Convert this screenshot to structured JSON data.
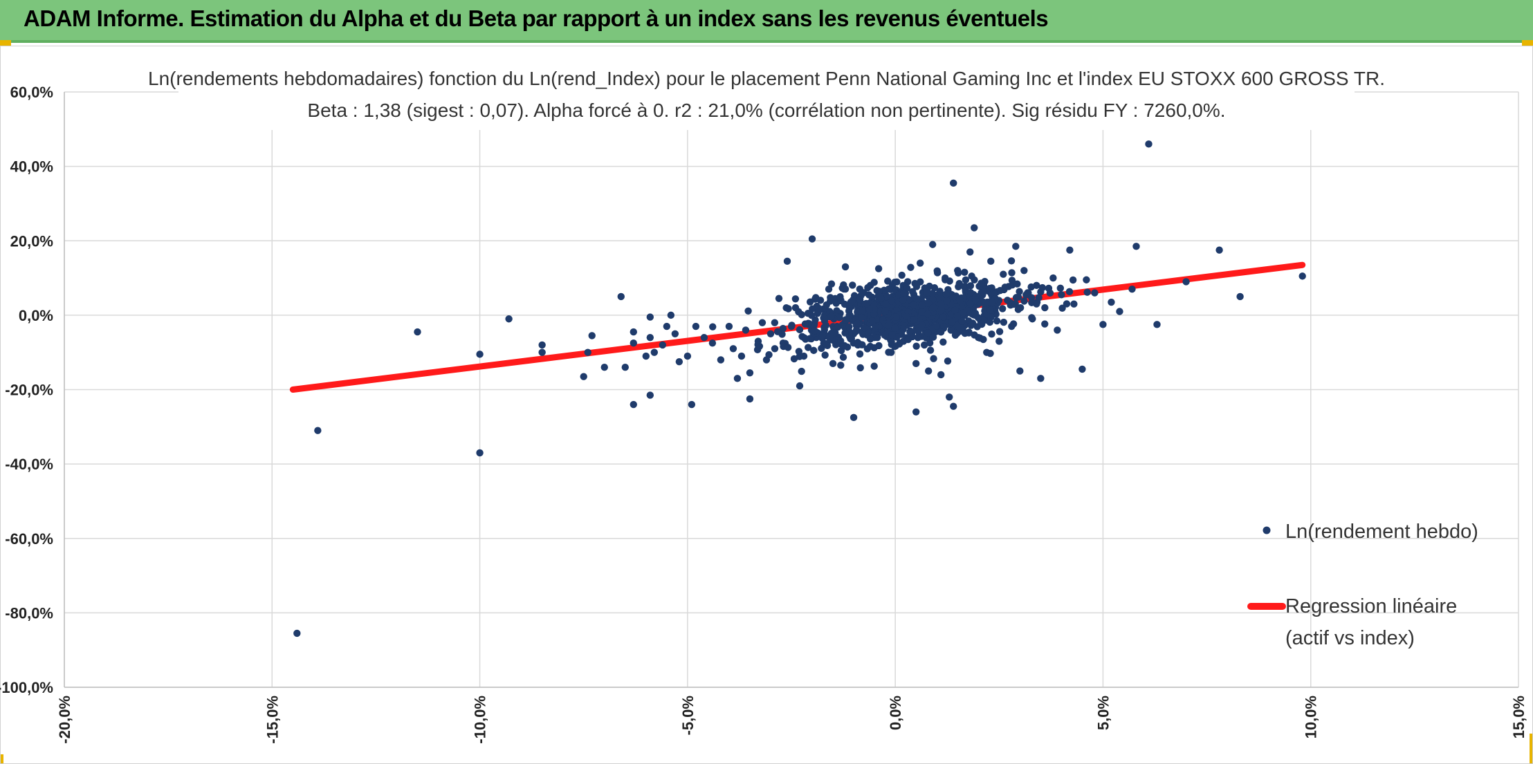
{
  "header": {
    "title": "ADAM Informe. Estimation du Alpha et du Beta par rapport à un index sans les revenus éventuels"
  },
  "colors": {
    "banner": "#7cc57c",
    "points": "#1f3b6b",
    "regression": "#ff1a1a",
    "grid": "#d9d9d9"
  },
  "chart_data": {
    "type": "scatter",
    "title_line1": "Ln(rendements hebdomadaires) fonction du Ln(rend_Index) pour le placement Penn National Gaming Inc et l'index EU STOXX 600 GROSS TR.",
    "title_line2": "Beta : 1,38 (sigest : 0,07). Alpha forcé à 0. r2 : 21,0% (corrélation non pertinente). Sig résidu FY : 7260,0%.",
    "xlim": [
      -20,
      15
    ],
    "ylim": [
      -100,
      60
    ],
    "x_ticks": [
      -20,
      -15,
      -10,
      -5,
      0,
      5,
      10,
      15
    ],
    "y_ticks": [
      60,
      40,
      20,
      0,
      -20,
      -40,
      -60,
      -80,
      -100
    ],
    "x_tick_labels": [
      "-20,0%",
      "-15,0%",
      "-10,0%",
      "-5,0%",
      "0,0%",
      "5,0%",
      "10,0%",
      "15,0%"
    ],
    "y_tick_labels": [
      "60,0%",
      "40,0%",
      "20,0%",
      "0,0%",
      "-20,0%",
      "-40,0%",
      "-60,0%",
      "-80,0%",
      "-100,0%"
    ],
    "grid": true,
    "legend_position": "right",
    "beta": 1.38,
    "alpha": 0,
    "series": [
      {
        "name": "Ln(rendement hebdo)",
        "kind": "scatter",
        "points": [
          [
            -14.4,
            -85.5
          ],
          [
            -13.9,
            -31
          ],
          [
            -11.5,
            -4.5
          ],
          [
            -10,
            -37
          ],
          [
            -10,
            -10.5
          ],
          [
            -9.3,
            -1
          ],
          [
            -8.5,
            -8
          ],
          [
            -8.5,
            -10
          ],
          [
            -7.5,
            -16.5
          ],
          [
            -7.4,
            -10
          ],
          [
            -7.3,
            -5.5
          ],
          [
            -7.0,
            -14
          ],
          [
            -6.6,
            5
          ],
          [
            -6.5,
            -14
          ],
          [
            -6.3,
            -24
          ],
          [
            -6.3,
            -7.5
          ],
          [
            -6.3,
            -4.5
          ],
          [
            -6.0,
            -11
          ],
          [
            -5.9,
            -21.5
          ],
          [
            -5.9,
            -6
          ],
          [
            -5.9,
            -0.5
          ],
          [
            -5.8,
            -10
          ],
          [
            -5.6,
            -8
          ],
          [
            -5.5,
            -3
          ],
          [
            -5.4,
            0
          ],
          [
            -5.3,
            -5
          ],
          [
            -5.2,
            -12.5
          ],
          [
            -5.0,
            -11
          ],
          [
            -4.9,
            -24
          ],
          [
            -4.8,
            -3
          ],
          [
            -4.6,
            -6
          ],
          [
            -4.4,
            -7.5
          ],
          [
            -4.2,
            -12
          ],
          [
            -4.0,
            -3
          ],
          [
            -3.9,
            -9
          ],
          [
            -3.8,
            -17
          ],
          [
            -3.7,
            -11
          ],
          [
            -3.6,
            -4
          ],
          [
            -3.5,
            -22.5
          ],
          [
            -3.5,
            -15.5
          ],
          [
            -3.3,
            -7
          ],
          [
            -3.2,
            -2
          ],
          [
            -3.1,
            -12
          ],
          [
            -3.0,
            -5
          ],
          [
            -2.9,
            -9
          ],
          [
            -2.8,
            4.5
          ],
          [
            -2.7,
            -7.5
          ],
          [
            -2.6,
            14.5
          ],
          [
            -2.5,
            -3
          ],
          [
            -2.4,
            2
          ],
          [
            -2.3,
            -19
          ],
          [
            -2.2,
            -11
          ],
          [
            -2.1,
            0.5
          ],
          [
            -2.0,
            20.5
          ],
          [
            -1.9,
            -6
          ],
          [
            -1.8,
            4
          ],
          [
            -1.7,
            -1.5
          ],
          [
            -1.6,
            7
          ],
          [
            -1.5,
            -13
          ],
          [
            -1.4,
            -3
          ],
          [
            -1.3,
            -9.5
          ],
          [
            -1.2,
            13
          ],
          [
            -1.1,
            2
          ],
          [
            -1.0,
            -5
          ],
          [
            -1.0,
            -27.5
          ],
          [
            -0.9,
            -8
          ],
          [
            -0.8,
            3
          ],
          [
            -0.7,
            -2
          ],
          [
            -0.6,
            8
          ],
          [
            -0.5,
            -6
          ],
          [
            -0.4,
            12.5
          ],
          [
            -0.3,
            -4
          ],
          [
            -0.2,
            1.5
          ],
          [
            -0.1,
            -10
          ],
          [
            0.0,
            5
          ],
          [
            0.1,
            -3
          ],
          [
            0.2,
            -7
          ],
          [
            0.3,
            9
          ],
          [
            0.4,
            -0.5
          ],
          [
            0.5,
            -26
          ],
          [
            0.5,
            -13
          ],
          [
            0.6,
            14
          ],
          [
            0.7,
            -8
          ],
          [
            0.8,
            -15
          ],
          [
            0.9,
            19
          ],
          [
            1.0,
            3
          ],
          [
            1.1,
            -16
          ],
          [
            1.2,
            10
          ],
          [
            1.3,
            -22
          ],
          [
            1.4,
            35.5
          ],
          [
            1.4,
            -24.5
          ],
          [
            1.5,
            12
          ],
          [
            1.6,
            -2
          ],
          [
            1.7,
            6
          ],
          [
            1.8,
            17
          ],
          [
            1.9,
            23.5
          ],
          [
            2.0,
            -6
          ],
          [
            2.1,
            8
          ],
          [
            2.2,
            -10
          ],
          [
            2.3,
            14.5
          ],
          [
            2.4,
            1
          ],
          [
            2.5,
            -7
          ],
          [
            2.6,
            11
          ],
          [
            2.7,
            4
          ],
          [
            2.8,
            -3
          ],
          [
            2.9,
            18.5
          ],
          [
            3.0,
            -15
          ],
          [
            3.1,
            12
          ],
          [
            3.2,
            6
          ],
          [
            3.3,
            -1
          ],
          [
            3.4,
            8
          ],
          [
            3.5,
            -17
          ],
          [
            3.6,
            2
          ],
          [
            3.8,
            10
          ],
          [
            3.9,
            -4
          ],
          [
            4.0,
            5.5
          ],
          [
            4.2,
            17.5
          ],
          [
            4.3,
            3
          ],
          [
            4.5,
            -14.5
          ],
          [
            4.6,
            9.5
          ],
          [
            4.8,
            6
          ],
          [
            5.0,
            -2.5
          ],
          [
            5.2,
            3.5
          ],
          [
            5.4,
            1
          ],
          [
            5.7,
            7
          ],
          [
            5.8,
            18.5
          ],
          [
            6.1,
            46
          ],
          [
            6.3,
            -2.5
          ],
          [
            7.0,
            9
          ],
          [
            7.8,
            17.5
          ],
          [
            8.3,
            5
          ],
          [
            9.8,
            10.5
          ]
        ]
      },
      {
        "name": "Regression linéaire (actif vs index)",
        "legend_line1": "Regression linéaire",
        "legend_line2": "(actif vs index)",
        "kind": "line",
        "points": [
          [
            -14.5,
            -20
          ],
          [
            9.8,
            13.5
          ]
        ]
      }
    ]
  }
}
